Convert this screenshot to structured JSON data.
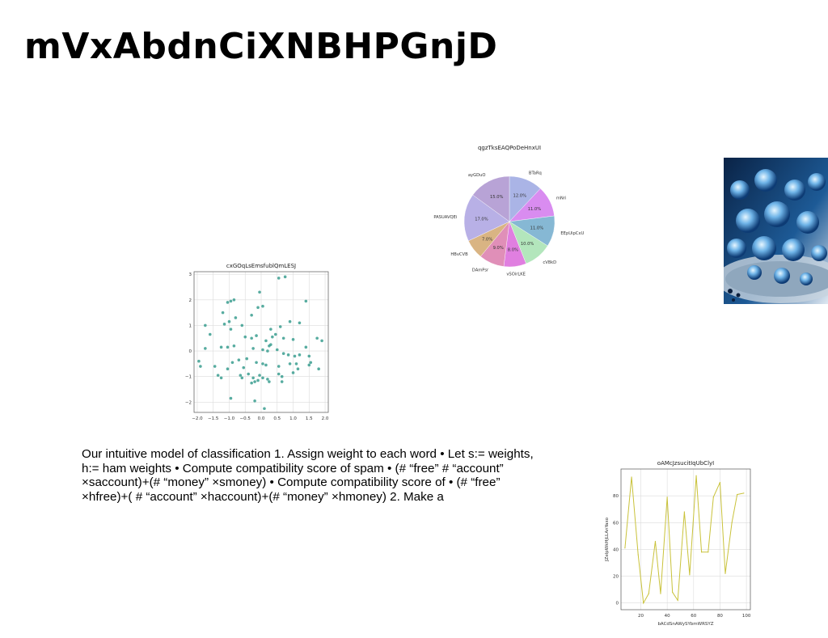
{
  "slide": {
    "title": "mVxAbdnCiXNBHPGnjD",
    "body": "Our intuitive model of classification 1. Assign weight to each word • Let s:= weights, h:= ham weights • Compute compatibility score of spam • (# “free” # “account” ×saccount)+(# “money” ×smoney) • Compute compatibility score of • (# “free” ×hfree)+( # “account” ×haccount)+(# “money” ×hmoney) 2. Make a"
  },
  "photo": {
    "alt": "blue crystal ornaments on silver tray",
    "colors": [
      "#0d2a52",
      "#2f78b8",
      "#9fd3f2",
      "#e8eef4"
    ]
  },
  "chart_data": [
    {
      "type": "scatter",
      "title": "cxGOqLsEmsfublQmLESJ",
      "xlim": [
        -2.1,
        2.1
      ],
      "ylim": [
        -2.4,
        3.1
      ],
      "xticks": [
        "−2.0",
        "−1.5",
        "−1.0",
        "−0.5",
        "0.0",
        "0.5",
        "1.0",
        "1.5",
        "2.0"
      ],
      "yticks": [
        "−2",
        "−1",
        "0",
        "1",
        "2",
        "3"
      ],
      "grid": true,
      "color": "#3a9d8f",
      "points": [
        [
          0.55,
          2.85
        ],
        [
          0.75,
          2.9
        ],
        [
          -0.05,
          2.3
        ],
        [
          1.4,
          1.95
        ],
        [
          -0.95,
          1.95
        ],
        [
          -0.85,
          2.0
        ],
        [
          -1.05,
          1.9
        ],
        [
          0.05,
          1.75
        ],
        [
          -0.1,
          1.7
        ],
        [
          -1.2,
          1.5
        ],
        [
          -0.3,
          1.4
        ],
        [
          -1.0,
          1.15
        ],
        [
          -0.8,
          1.3
        ],
        [
          -1.15,
          1.05
        ],
        [
          0.9,
          1.15
        ],
        [
          1.2,
          1.1
        ],
        [
          -0.6,
          1.0
        ],
        [
          0.6,
          0.95
        ],
        [
          -1.75,
          1.0
        ],
        [
          -0.95,
          0.85
        ],
        [
          0.3,
          0.85
        ],
        [
          0.45,
          0.65
        ],
        [
          -0.15,
          0.6
        ],
        [
          -0.5,
          0.55
        ],
        [
          -0.3,
          0.5
        ],
        [
          0.15,
          0.4
        ],
        [
          0.35,
          0.55
        ],
        [
          0.7,
          0.5
        ],
        [
          1.0,
          0.45
        ],
        [
          1.75,
          0.5
        ],
        [
          1.9,
          0.4
        ],
        [
          0.3,
          0.25
        ],
        [
          0.25,
          0.2
        ],
        [
          -0.85,
          0.2
        ],
        [
          -1.05,
          0.15
        ],
        [
          -1.25,
          0.15
        ],
        [
          -1.75,
          0.1
        ],
        [
          -0.25,
          0.1
        ],
        [
          0.05,
          0.05
        ],
        [
          0.2,
          0.0
        ],
        [
          0.5,
          0.05
        ],
        [
          0.7,
          -0.1
        ],
        [
          0.85,
          -0.15
        ],
        [
          1.05,
          -0.2
        ],
        [
          1.2,
          -0.15
        ],
        [
          1.4,
          0.15
        ],
        [
          1.5,
          -0.2
        ],
        [
          -0.45,
          -0.3
        ],
        [
          -0.7,
          -0.35
        ],
        [
          -0.9,
          -0.45
        ],
        [
          -0.15,
          -0.45
        ],
        [
          0.05,
          -0.5
        ],
        [
          0.15,
          -0.55
        ],
        [
          0.55,
          -0.6
        ],
        [
          0.9,
          -0.5
        ],
        [
          1.1,
          -0.5
        ],
        [
          1.5,
          -0.55
        ],
        [
          1.55,
          -0.45
        ],
        [
          -1.9,
          -0.6
        ],
        [
          -1.95,
          -0.4
        ],
        [
          -1.45,
          -0.6
        ],
        [
          -1.05,
          -0.7
        ],
        [
          -0.55,
          -0.65
        ],
        [
          -0.4,
          -0.9
        ],
        [
          -0.25,
          -1.05
        ],
        [
          -0.2,
          -1.2
        ],
        [
          -0.3,
          -1.25
        ],
        [
          -0.05,
          -0.95
        ],
        [
          0.05,
          -1.05
        ],
        [
          0.2,
          -1.1
        ],
        [
          0.25,
          -1.2
        ],
        [
          0.55,
          -0.9
        ],
        [
          0.65,
          -1.0
        ],
        [
          1.0,
          -0.85
        ],
        [
          1.15,
          -0.7
        ],
        [
          1.8,
          -0.7
        ],
        [
          -1.35,
          -0.95
        ],
        [
          -1.25,
          -1.05
        ],
        [
          -0.65,
          -0.95
        ],
        [
          -0.6,
          -1.05
        ],
        [
          -0.1,
          -1.15
        ],
        [
          0.65,
          -1.2
        ],
        [
          -0.95,
          -1.85
        ],
        [
          -0.2,
          -1.95
        ],
        [
          0.1,
          -2.25
        ],
        [
          -1.6,
          0.65
        ]
      ]
    },
    {
      "type": "pie",
      "title": "qgzTksEAQPoDeHnxUI",
      "slices": [
        {
          "label": "BTaRq",
          "value": 12.0,
          "pct": "12.0%",
          "color": "#aab4e6"
        },
        {
          "label": "mNri",
          "value": 11.0,
          "pct": "11.0%",
          "color": "#d98cf0"
        },
        {
          "label": "EEpUipCxU",
          "value": 11.0,
          "pct": "11.0%",
          "color": "#86b8d4"
        },
        {
          "label": "cV8kD",
          "value": 10.0,
          "pct": "10.0%",
          "color": "#b3e6bc"
        },
        {
          "label": "vSOirLKE",
          "value": 8.0,
          "pct": "8.0%",
          "color": "#e07fe0"
        },
        {
          "label": "DAmPsr",
          "value": 9.0,
          "pct": "9.0%",
          "color": "#e08fb8"
        },
        {
          "label": "HBvCVB",
          "value": 7.0,
          "pct": "7.0%",
          "color": "#d9b483"
        },
        {
          "label": "PASUAVQEi",
          "value": 17.0,
          "pct": "17.0%",
          "color": "#b8b0e6"
        },
        {
          "label": "ayGDuO",
          "value": 15.0,
          "pct": "15.0%",
          "color": "#b8a3d6"
        }
      ]
    },
    {
      "type": "line",
      "title": "oAMcJzsucitIqUbClyI",
      "xlabel": "bACdSnAWySYbmWRSYZ",
      "ylabel": "JZelpWkHjLLAnYaxo",
      "xlim": [
        5,
        103
      ],
      "ylim": [
        -5,
        100
      ],
      "xticks": [
        20,
        40,
        60,
        80,
        100
      ],
      "yticks": [
        0,
        20,
        40,
        60,
        80
      ],
      "grid": true,
      "color": "#c9c23a",
      "x": [
        8,
        13,
        18,
        22,
        26,
        31,
        35,
        40,
        44,
        48,
        53,
        57,
        62,
        66,
        71,
        75,
        80,
        84,
        89,
        93,
        98
      ],
      "y": [
        41,
        94,
        36,
        0,
        7,
        46,
        7,
        79,
        8,
        2,
        68,
        21,
        95,
        38,
        38,
        79,
        90,
        22,
        60,
        81,
        82
      ]
    }
  ]
}
